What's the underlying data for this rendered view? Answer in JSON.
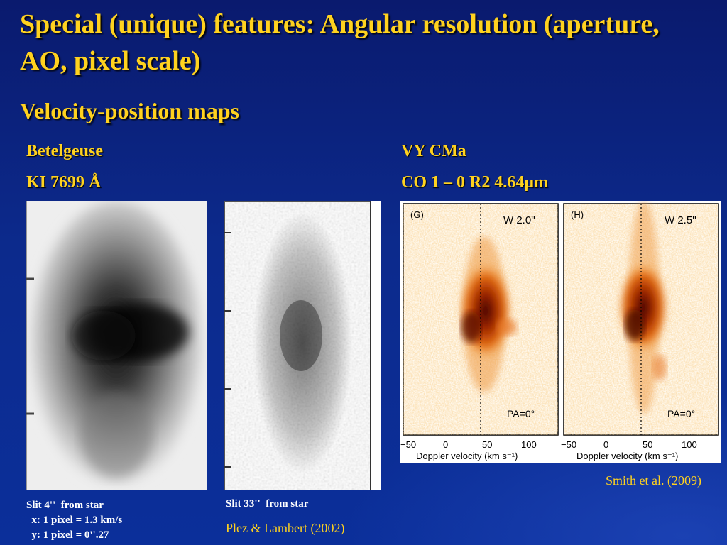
{
  "slide": {
    "title": "Special (unique) features: Angular resolution (aperture, AO, pixel scale)",
    "subtitle": "Velocity-position maps"
  },
  "left_block": {
    "star": "Betelgeuse",
    "line": "KI 7699 Å",
    "caption1": {
      "line1": "Slit 4''  from star",
      "line2": "  x: 1 pixel = 1.3 km/s",
      "line3": "  y: 1 pixel = 0''.27"
    },
    "caption2": "Slit 33''  from star",
    "reference": "Plez & Lambert (2002)"
  },
  "right_block": {
    "star": "VY CMa",
    "line": "CO 1 – 0 R2 4.64μm",
    "reference": "Smith et al. (2009)",
    "panel_g": {
      "tag": "(G)",
      "slit": "W 2.0''",
      "pa": "PA=0°"
    },
    "panel_h": {
      "tag": "(H)",
      "slit": "W 2.5''",
      "pa": "PA=0°"
    },
    "xaxis_label": "Doppler velocity (km s⁻¹)",
    "ticks": [
      "−50",
      "0",
      "50",
      "100"
    ]
  },
  "colors": {
    "accent": "#ffd21f",
    "background": "#0c2a8c",
    "caption": "#ffffff"
  }
}
